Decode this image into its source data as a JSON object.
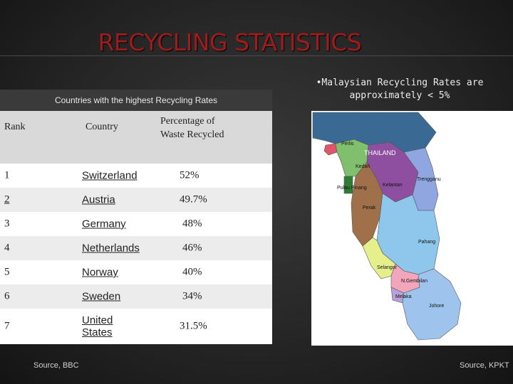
{
  "slide": {
    "title": "RECYCLING STATISTICS",
    "table_heading": "Countries with the highest Recycling Rates",
    "columns": [
      "Rank",
      "Country",
      "Percentage of Waste Recycled"
    ],
    "rows": [
      {
        "rank": "1",
        "country": "Switzerland",
        "percentage": "52%"
      },
      {
        "rank": "2",
        "country": "Austria",
        "percentage": "49.7%"
      },
      {
        "rank": "3",
        "country": "Germany",
        "percentage": "48%"
      },
      {
        "rank": "4",
        "country": "Netherlands",
        "percentage": "46%"
      },
      {
        "rank": "5",
        "country": "Norway",
        "percentage": "40%"
      },
      {
        "rank": "6",
        "country": "Sweden",
        "percentage": "34%"
      },
      {
        "rank": "7",
        "country": "United States",
        "percentage": "31.5%"
      }
    ],
    "source_left": "Source, BBC",
    "note": "•Malaysian Recycling Rates are approximately < 5%",
    "source_right": "Source, KPKT"
  },
  "map": {
    "labels": {
      "perlis": "Perlis",
      "thailand": "THAILAND",
      "kedah": "Kedah",
      "pulau_pinang": "Pulau Pinang",
      "kelantan": "Kelantan",
      "terengganu": "Trengganu",
      "perak": "Perak",
      "pahang": "Pahang",
      "selangor": "Selangor",
      "n_sembilan": "N.Gembilan",
      "melaka": "Melaka",
      "johore": "Johore"
    },
    "colors": {
      "sea": "#ffffff",
      "thailand": "#3a6a94",
      "perlis": "#e0556a",
      "kedah": "#7fbf6e",
      "penang": "#2e7d32",
      "kelantan": "#8e4fa0",
      "terengganu": "#8fa6e0",
      "perak": "#a0704a",
      "pahang": "#8fc7ec",
      "selangor": "#e5f08c",
      "n_sembilan": "#f2a6bc",
      "melaka": "#b7a1d8",
      "johore": "#9ec4ee"
    }
  }
}
